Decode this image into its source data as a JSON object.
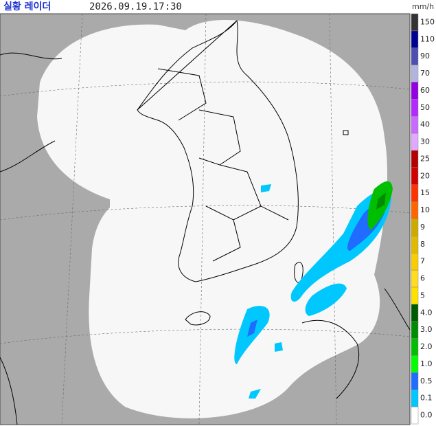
{
  "header": {
    "title": "실황 레이더",
    "time": "2026.09.19.17:30"
  },
  "legend": {
    "unit": "mm/h",
    "levels": [
      {
        "label": "150",
        "color": "#333333"
      },
      {
        "label": "110",
        "color": "#000390"
      },
      {
        "label": "90",
        "color": "#4c4eb1"
      },
      {
        "label": "70",
        "color": "#b3b4de"
      },
      {
        "label": "60",
        "color": "#9300e4"
      },
      {
        "label": "50",
        "color": "#b329ff"
      },
      {
        "label": "40",
        "color": "#c969ff"
      },
      {
        "label": "30",
        "color": "#e0a9ff"
      },
      {
        "label": "25",
        "color": "#b40000"
      },
      {
        "label": "20",
        "color": "#d20000"
      },
      {
        "label": "15",
        "color": "#ff3300"
      },
      {
        "label": "10",
        "color": "#ff6600"
      },
      {
        "label": "9",
        "color": "#ccaa00"
      },
      {
        "label": "8",
        "color": "#e0b900"
      },
      {
        "label": "7",
        "color": "#f9cd00"
      },
      {
        "label": "6",
        "color": "#ffdc1f"
      },
      {
        "label": "5",
        "color": "#ffe100"
      },
      {
        "label": "4.0",
        "color": "#005a00"
      },
      {
        "label": "3.0",
        "color": "#008c00"
      },
      {
        "label": "2.0",
        "color": "#00be00"
      },
      {
        "label": "1.0",
        "color": "#00ff00"
      },
      {
        "label": "0.5",
        "color": "#1f6cff"
      },
      {
        "label": "0.1",
        "color": "#00c8ff"
      },
      {
        "label": "0.0",
        "color": "#ffffff"
      }
    ]
  }
}
